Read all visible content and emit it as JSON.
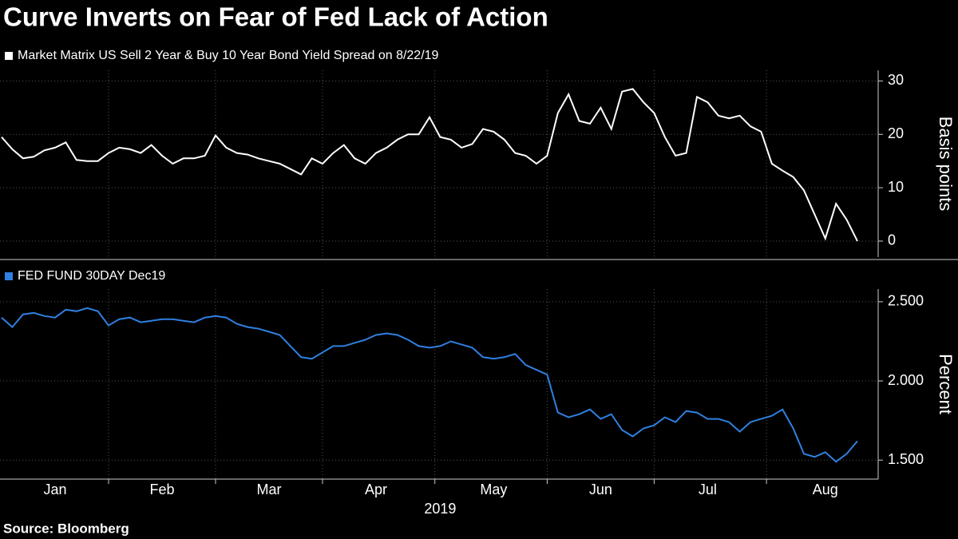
{
  "title": "Curve Inverts on Fear of Fed Lack of Action",
  "source": "Source:  Bloomberg",
  "chart_data": [
    {
      "type": "line",
      "y_label": "Basis points",
      "ylim": [
        -3,
        32
      ],
      "yticks": [
        0,
        10,
        20,
        30
      ],
      "grid": true,
      "categories": [
        null,
        null,
        null,
        null,
        null,
        "Jan",
        null,
        null,
        null,
        null,
        null,
        null,
        null,
        null,
        null,
        "Feb",
        null,
        null,
        null,
        null,
        null,
        null,
        null,
        null,
        null,
        "Mar",
        null,
        null,
        null,
        null,
        null,
        null,
        null,
        null,
        null,
        "Apr",
        null,
        null,
        null,
        null,
        null,
        null,
        null,
        null,
        null,
        null,
        "May",
        null,
        null,
        null,
        null,
        null,
        null,
        null,
        null,
        null,
        "Jun",
        null,
        null,
        null,
        null,
        null,
        null,
        null,
        null,
        null,
        "Jul",
        null,
        null,
        null,
        null,
        null,
        null,
        null,
        null,
        null,
        null,
        "Aug",
        null,
        null,
        null
      ],
      "series": [
        {
          "name": "Market Matrix US Sell 2 Year & Buy 10 Year Bond Yield Spread  on 8/22/19",
          "color": "#ffffff",
          "values": [
            19.5,
            17.2,
            15.5,
            15.8,
            17,
            17.5,
            18.5,
            15.2,
            15,
            15,
            16.5,
            17.5,
            17.2,
            16.5,
            18,
            16,
            14.5,
            15.5,
            15.5,
            16,
            19.8,
            17.5,
            16.5,
            16.2,
            15.5,
            15,
            14.5,
            13.5,
            12.5,
            15.5,
            14.5,
            16.5,
            18,
            15.5,
            14.5,
            16.5,
            17.5,
            19,
            20,
            20,
            23.2,
            19.5,
            19,
            17.5,
            18.2,
            21,
            20.5,
            19,
            16.5,
            16,
            14.5,
            16,
            24,
            27.5,
            22.5,
            22,
            25,
            21,
            28,
            28.5,
            26,
            24,
            19.5,
            16,
            16.5,
            27,
            26,
            23.5,
            23,
            23.5,
            21.5,
            20.5,
            14.5,
            13.2,
            12,
            9.5,
            5,
            0.5,
            7,
            4,
            0
          ]
        }
      ]
    },
    {
      "type": "line",
      "y_label": "Percent",
      "x_label": "2019",
      "ylim": [
        1.38,
        2.58
      ],
      "yticks": [
        {
          "value": 1.5,
          "label": "1.500"
        },
        {
          "value": 2,
          "label": "2.000"
        },
        {
          "value": 2.5,
          "label": "2.500"
        }
      ],
      "grid": true,
      "categories": [
        null,
        null,
        null,
        null,
        null,
        "Jan",
        null,
        null,
        null,
        null,
        null,
        null,
        null,
        null,
        null,
        "Feb",
        null,
        null,
        null,
        null,
        null,
        null,
        null,
        null,
        null,
        "Mar",
        null,
        null,
        null,
        null,
        null,
        null,
        null,
        null,
        null,
        "Apr",
        null,
        null,
        null,
        null,
        null,
        null,
        null,
        null,
        null,
        null,
        "May",
        null,
        null,
        null,
        null,
        null,
        null,
        null,
        null,
        null,
        "Jun",
        null,
        null,
        null,
        null,
        null,
        null,
        null,
        null,
        null,
        "Jul",
        null,
        null,
        null,
        null,
        null,
        null,
        null,
        null,
        null,
        null,
        "Aug",
        null,
        null,
        null
      ],
      "series": [
        {
          "name": "FED FUND 30DAY Dec19",
          "color": "#2f80e0",
          "values": [
            2.4,
            2.34,
            2.42,
            2.43,
            2.41,
            2.4,
            2.45,
            2.44,
            2.46,
            2.44,
            2.35,
            2.39,
            2.4,
            2.37,
            2.38,
            2.39,
            2.39,
            2.38,
            2.37,
            2.4,
            2.41,
            2.4,
            2.36,
            2.34,
            2.33,
            2.31,
            2.29,
            2.22,
            2.15,
            2.14,
            2.18,
            2.22,
            2.22,
            2.24,
            2.26,
            2.29,
            2.3,
            2.29,
            2.26,
            2.22,
            2.21,
            2.22,
            2.25,
            2.23,
            2.21,
            2.15,
            2.14,
            2.15,
            2.17,
            2.1,
            2.07,
            2.04,
            1.8,
            1.77,
            1.79,
            1.82,
            1.76,
            1.79,
            1.69,
            1.65,
            1.7,
            1.72,
            1.77,
            1.74,
            1.81,
            1.8,
            1.76,
            1.76,
            1.74,
            1.68,
            1.74,
            1.76,
            1.78,
            1.82,
            1.7,
            1.54,
            1.52,
            1.55,
            1.49,
            1.54,
            1.62
          ]
        }
      ]
    }
  ]
}
